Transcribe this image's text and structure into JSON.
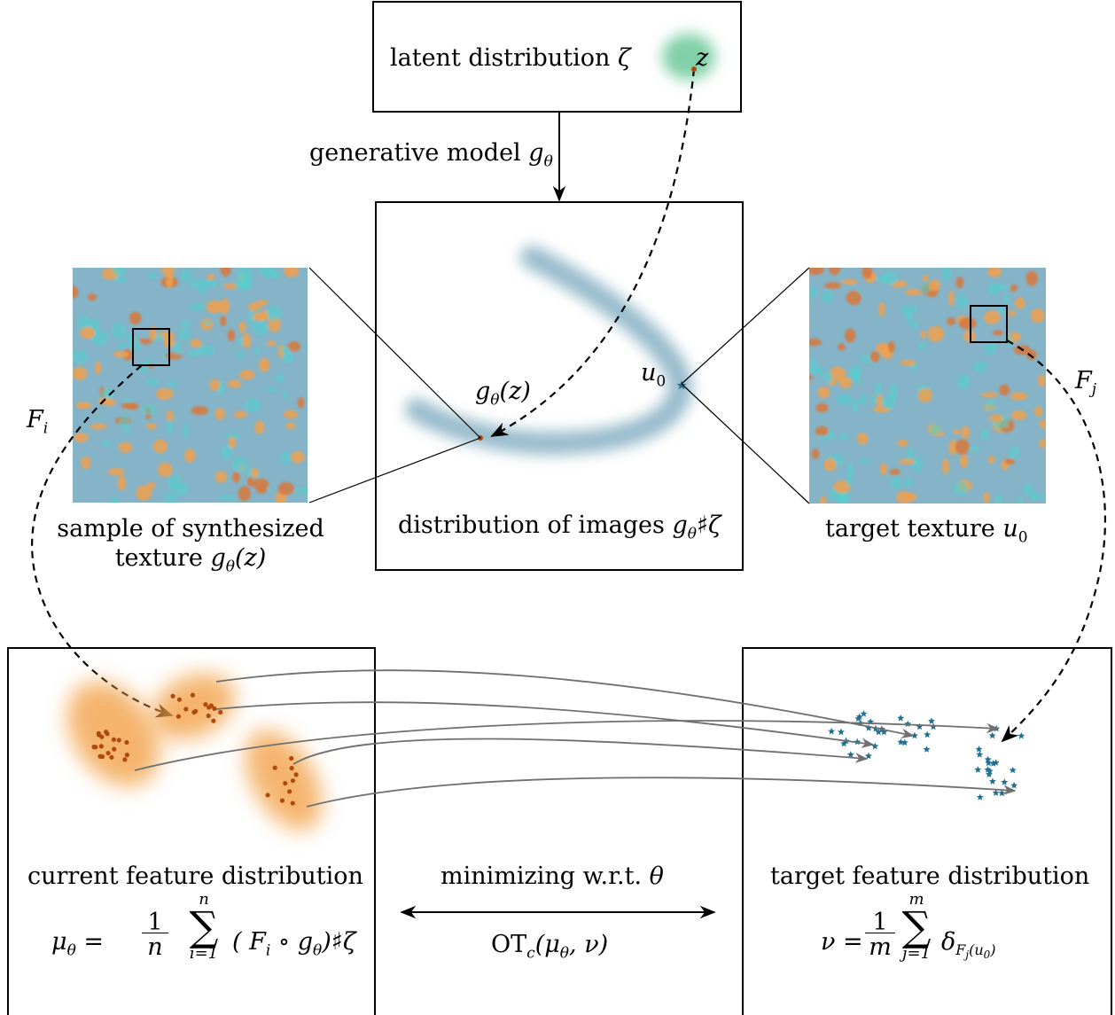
{
  "top_box": {
    "label": "latent distribution",
    "symbol": "ζ",
    "point": "z"
  },
  "arrow_label": {
    "text": "generative model",
    "symbol": "g",
    "sub": "θ"
  },
  "center_box": {
    "caption": "distribution of images",
    "caption_math": "g",
    "caption_sub": "θ",
    "caption_tail": "♯ζ",
    "point_g": "g",
    "point_g_sub": "θ",
    "point_g_arg": "(z)",
    "point_u": "u",
    "point_u_sub": "0"
  },
  "left_texture": {
    "caption_line1": "sample of synthesized",
    "caption_line2": "texture",
    "caption_math": "g",
    "caption_sub": "θ",
    "caption_arg": "(z)",
    "feature": "F",
    "feature_sub": "i"
  },
  "right_texture": {
    "caption": "target texture",
    "caption_math": "u",
    "caption_sub": "0",
    "feature": "F",
    "feature_sub": "j"
  },
  "bottom_left": {
    "title": "current feature distribution",
    "formula_lhs": "μ",
    "formula_lhs_sub": "θ",
    "frac_num": "1",
    "frac_den": "n",
    "sum_top": "n",
    "sum_bottom": "i=1",
    "term": "( F",
    "term_sub": "i",
    "term_tail": "∘ g",
    "term_tail_sub": "θ",
    "term_end": ")♯ζ"
  },
  "bottom_middle": {
    "label": "minimizing w.r.t.",
    "symbol": "θ",
    "ot": "OT",
    "ot_sub": "c",
    "ot_args": "(μ",
    "ot_args_sub": "θ",
    "ot_args_end": ", ν)"
  },
  "bottom_right": {
    "title": "target feature distribution",
    "formula_lhs": "ν",
    "frac_num": "1",
    "frac_den": "m",
    "sum_top": "m",
    "sum_bottom": "j=1",
    "delta": "δ",
    "delta_sub": "F",
    "delta_sub_sub": "j",
    "delta_sub_arg": "(u",
    "delta_sub_arg_sub": "0",
    "delta_sub_arg_end": ")"
  },
  "colors": {
    "latent_blob": "#55c08a",
    "curve": "#7aa8bd",
    "orange_cluster": "#f2a24a",
    "dot": "#b04a0c",
    "star": "#1f6f8f",
    "texture_bg": "#85b3c7",
    "texture_orange": "#f0a04c",
    "texture_cyan": "#4fd3cf",
    "arrow_gray": "#707070"
  }
}
